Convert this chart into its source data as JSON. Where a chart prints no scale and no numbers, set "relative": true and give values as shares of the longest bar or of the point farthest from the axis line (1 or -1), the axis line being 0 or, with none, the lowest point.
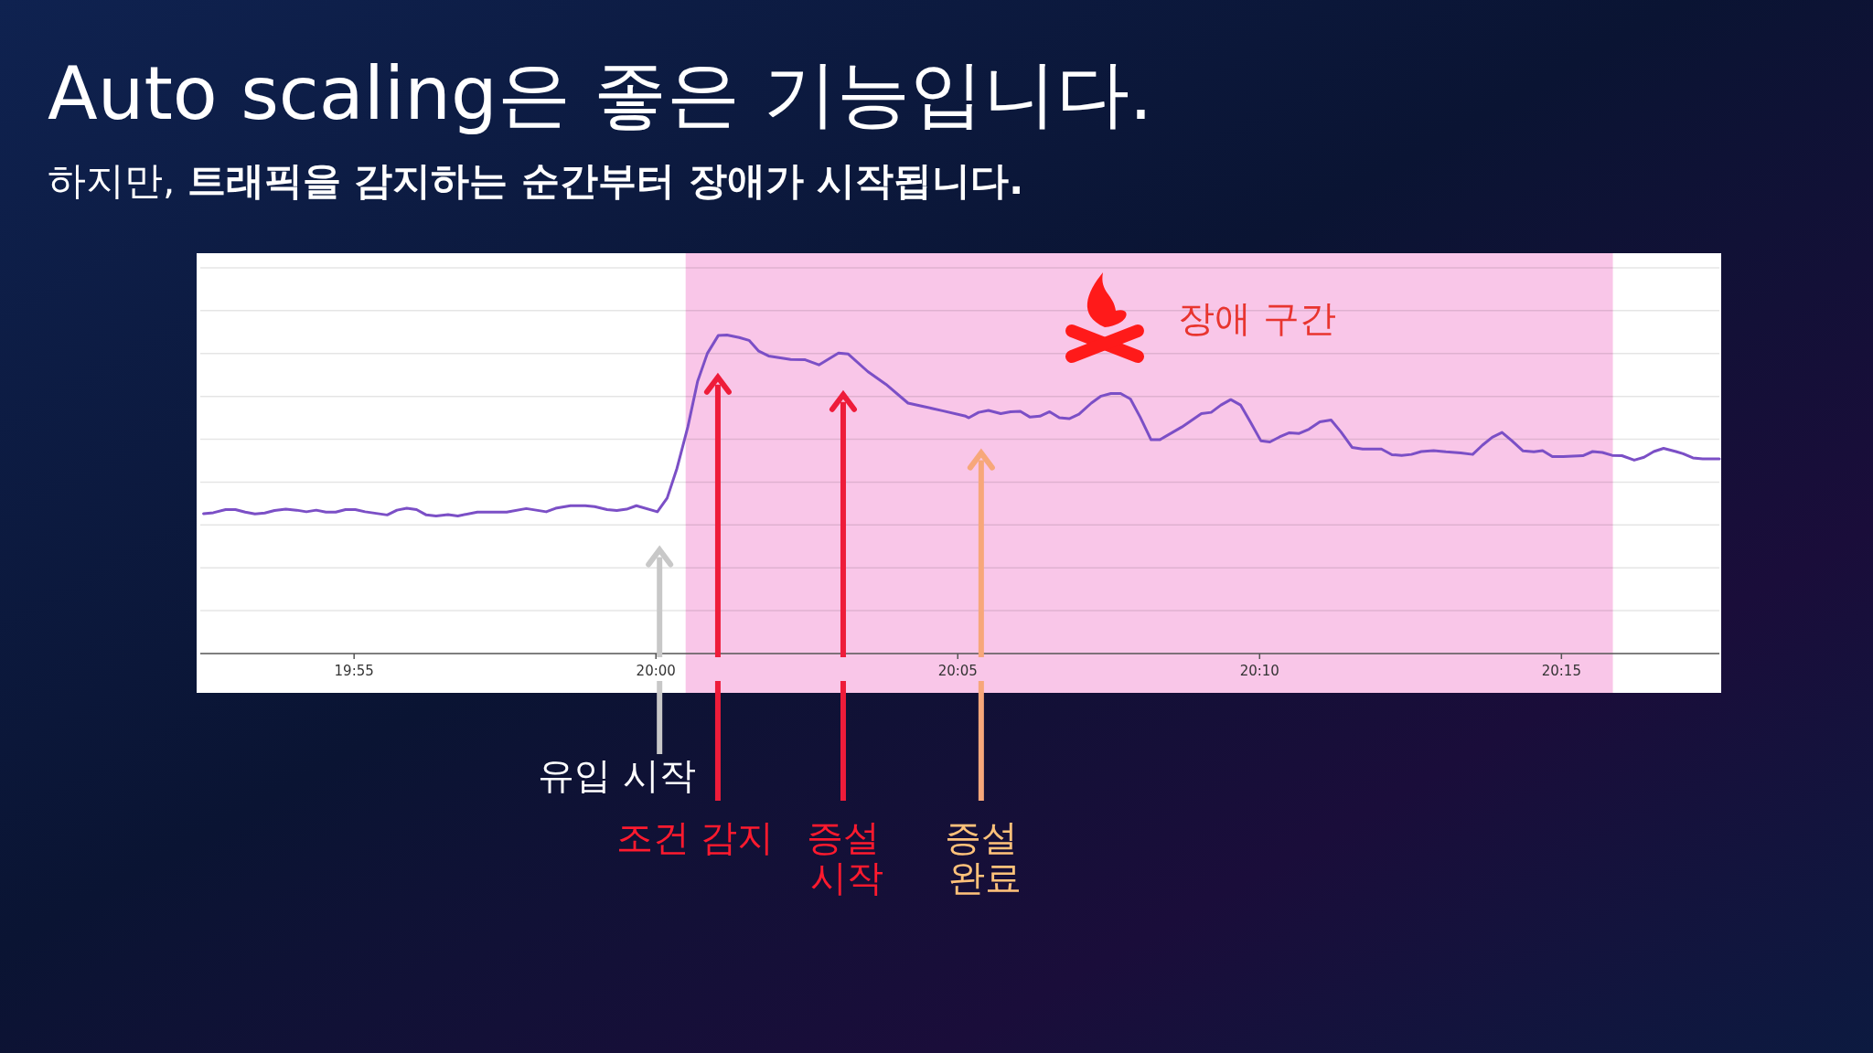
{
  "chart_data": {
    "type": "line",
    "title": "Auto scaling은 좋은 기능입니다.",
    "subtitle": "하지만, **트래픽을 감지하는 순간부터 장애가 시작됩니다.**",
    "relative": true,
    "grid": "y",
    "xlim": [
      19.8742,
      20.2936
    ],
    "xticks": [
      {
        "value": 19.916667,
        "label": "19:55"
      },
      {
        "value": 20,
        "label": "20:00"
      },
      {
        "value": 20.083333,
        "label": "20:05"
      },
      {
        "value": 20.166667,
        "label": "20:10"
      },
      {
        "value": 20.25,
        "label": "20:15"
      }
    ],
    "bands": [
      {
        "axis": "x",
        "from": 20.0082,
        "to": 20.2642,
        "label": "장애 구간",
        "color": "#f9c6e8"
      }
    ],
    "ref_lines": [
      {
        "axis": "x",
        "value": 20.001,
        "label": "유입 시작",
        "color": "#c8c8c8"
      },
      {
        "axis": "x",
        "value": 20.0171,
        "label": "조건 감지",
        "color": "#ee1c3a"
      },
      {
        "axis": "x",
        "value": 20.0517,
        "label": "증설\n시작",
        "color": "#ee1c3a"
      },
      {
        "axis": "x",
        "value": 20.0898,
        "label": "증설\n완료",
        "color": "#f7a77a"
      }
    ],
    "series": [
      {
        "color": "#7b4fc6",
        "x": [
          19.8751,
          19.8778,
          19.8812,
          19.8839,
          19.8866,
          19.8893,
          19.892,
          19.8947,
          19.8978,
          19.9008,
          19.9035,
          19.9062,
          19.9089,
          19.9116,
          19.9143,
          19.917,
          19.9197,
          19.9258,
          19.9285,
          19.9312,
          19.9339,
          19.9366,
          19.9393,
          19.9426,
          19.9453,
          19.9507,
          19.9588,
          19.9642,
          19.9697,
          19.9723,
          19.9764,
          19.9805,
          19.9831,
          19.9865,
          19.9892,
          19.9919,
          19.9946,
          20.0004,
          20.0031,
          20.0058,
          20.0088,
          20.0115,
          20.0142,
          20.0172,
          20.0196,
          20.023,
          20.0257,
          20.0284,
          20.0311,
          20.0372,
          20.0412,
          20.045,
          20.0504,
          20.0531,
          20.0585,
          20.0635,
          20.0696,
          20.0736,
          20.0791,
          20.0855,
          20.0864,
          20.0891,
          20.0918,
          20.0952,
          20.0979,
          20.1006,
          20.1033,
          20.106,
          20.1087,
          20.1114,
          20.1141,
          20.1168,
          20.1202,
          20.1229,
          20.1256,
          20.1283,
          20.131,
          20.1337,
          20.1367,
          20.1391,
          20.1452,
          20.1506,
          20.1533,
          20.156,
          20.1587,
          20.1614,
          20.1641,
          20.167,
          20.1695,
          20.1722,
          20.1749,
          20.1776,
          20.1803,
          20.1833,
          20.1864,
          20.1891,
          20.1922,
          20.1951,
          20.2003,
          20.2032,
          20.2059,
          20.2086,
          20.2113,
          20.2147,
          20.2181,
          20.2222,
          20.2255,
          20.2282,
          20.2309,
          20.2336,
          20.2363,
          20.2394,
          20.2424,
          20.2448,
          20.2475,
          20.2505,
          20.2559,
          20.2586,
          20.2613,
          20.264,
          20.2667,
          20.2701,
          20.2728,
          20.2755,
          20.2782,
          20.2816,
          20.2836,
          20.2863,
          20.289,
          20.2936
        ],
        "values": [
          0.439,
          0.442,
          0.452,
          0.452,
          0.444,
          0.438,
          0.441,
          0.449,
          0.453,
          0.45,
          0.445,
          0.45,
          0.444,
          0.444,
          0.452,
          0.452,
          0.445,
          0.435,
          0.45,
          0.456,
          0.452,
          0.435,
          0.432,
          0.436,
          0.432,
          0.444,
          0.444,
          0.455,
          0.445,
          0.456,
          0.464,
          0.464,
          0.461,
          0.452,
          0.449,
          0.453,
          0.464,
          0.445,
          0.488,
          0.581,
          0.711,
          0.854,
          0.942,
          0.998,
          1,
          0.992,
          0.983,
          0.949,
          0.934,
          0.923,
          0.922,
          0.906,
          0.943,
          0.94,
          0.885,
          0.845,
          0.786,
          0.776,
          0.762,
          0.745,
          0.74,
          0.757,
          0.763,
          0.753,
          0.759,
          0.76,
          0.742,
          0.745,
          0.759,
          0.74,
          0.737,
          0.751,
          0.786,
          0.808,
          0.816,
          0.816,
          0.799,
          0.742,
          0.671,
          0.671,
          0.711,
          0.753,
          0.757,
          0.78,
          0.797,
          0.78,
          0.727,
          0.668,
          0.664,
          0.68,
          0.693,
          0.691,
          0.704,
          0.727,
          0.733,
          0.696,
          0.647,
          0.642,
          0.642,
          0.624,
          0.622,
          0.625,
          0.634,
          0.637,
          0.633,
          0.63,
          0.625,
          0.654,
          0.679,
          0.694,
          0.668,
          0.636,
          0.633,
          0.637,
          0.618,
          0.618,
          0.621,
          0.634,
          0.631,
          0.622,
          0.621,
          0.607,
          0.616,
          0.634,
          0.644,
          0.634,
          0.627,
          0.614,
          0.611,
          0.611
        ]
      }
    ]
  }
}
